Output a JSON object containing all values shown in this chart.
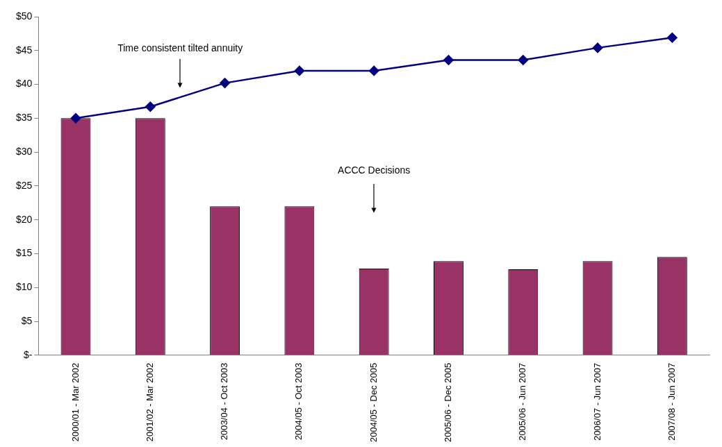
{
  "chart_data": {
    "type": "bar",
    "categories": [
      "2000/01 - Mar 2002",
      "2001/02 - Mar 2002",
      "2003/04 - Oct 2003",
      "2004/05 - Oct 2003",
      "2004/05 - Dec 2005",
      "2005/06 - Dec 2005",
      "2005/06 - Jun 2007",
      "2006/07 - Jun 2007",
      "2007/08 - Jun 2007"
    ],
    "series": [
      {
        "color": "#993366",
        "values": [
          35,
          35,
          22,
          22,
          12.8,
          13.9,
          12.7,
          13.9,
          14.5
        ]
      },
      {
        "type": "line",
        "color": "#000080",
        "marker": "diamond",
        "values": [
          35,
          36.7,
          40.2,
          42,
          42,
          43.6,
          43.6,
          45.4,
          46.9
        ]
      }
    ],
    "ylim": [
      0,
      50
    ],
    "yticks": [
      {
        "value": 0,
        "label": "$-"
      },
      {
        "value": 5,
        "label": "$5"
      },
      {
        "value": 10,
        "label": "$10"
      },
      {
        "value": 15,
        "label": "$15"
      },
      {
        "value": 20,
        "label": "$20"
      },
      {
        "value": 25,
        "label": "$25"
      },
      {
        "value": 30,
        "label": "$30"
      },
      {
        "value": 35,
        "label": "$35"
      },
      {
        "value": 40,
        "label": "$40"
      },
      {
        "value": 45,
        "label": "$45"
      },
      {
        "value": 50,
        "label": "$50"
      }
    ],
    "annotations": [
      "Time consistent tilted annuity",
      "ACCC Decisions"
    ],
    "grid": false,
    "legend": false
  }
}
